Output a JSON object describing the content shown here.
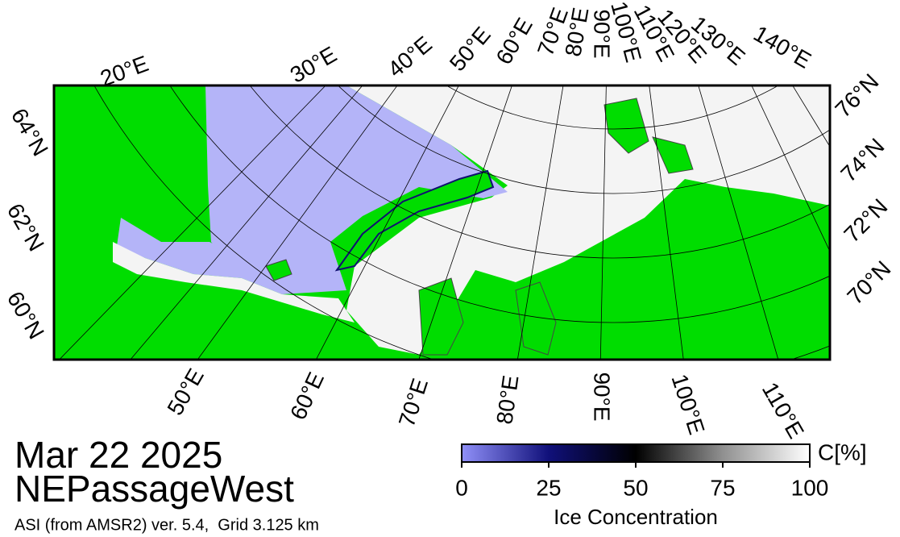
{
  "header": {
    "date": "Mar 22 2025",
    "region": "NEPassageWest",
    "source": "ASI (from AMSR2) ver. 5.4,  Grid 3.125 km"
  },
  "map": {
    "top_labels": [
      "20°E",
      "30°E",
      "40°E",
      "50°E",
      "60°E",
      "70°E",
      "80°E",
      "90°E",
      "100°E",
      "110°E",
      "120°E",
      "130°E",
      "140°E"
    ],
    "bottom_labels": [
      "50°E",
      "60°E",
      "70°E",
      "80°E",
      "90°E",
      "100°E",
      "110°E"
    ],
    "left_labels": [
      "64°N",
      "62°N",
      "60°N"
    ],
    "right_labels": [
      "76°N",
      "74°N",
      "72°N",
      "70°N"
    ]
  },
  "colorbar": {
    "lim": [
      0,
      100
    ],
    "ticks": [
      0,
      25,
      50,
      75,
      100
    ],
    "unit": "C[%]",
    "label": "Ice Concentration"
  }
}
